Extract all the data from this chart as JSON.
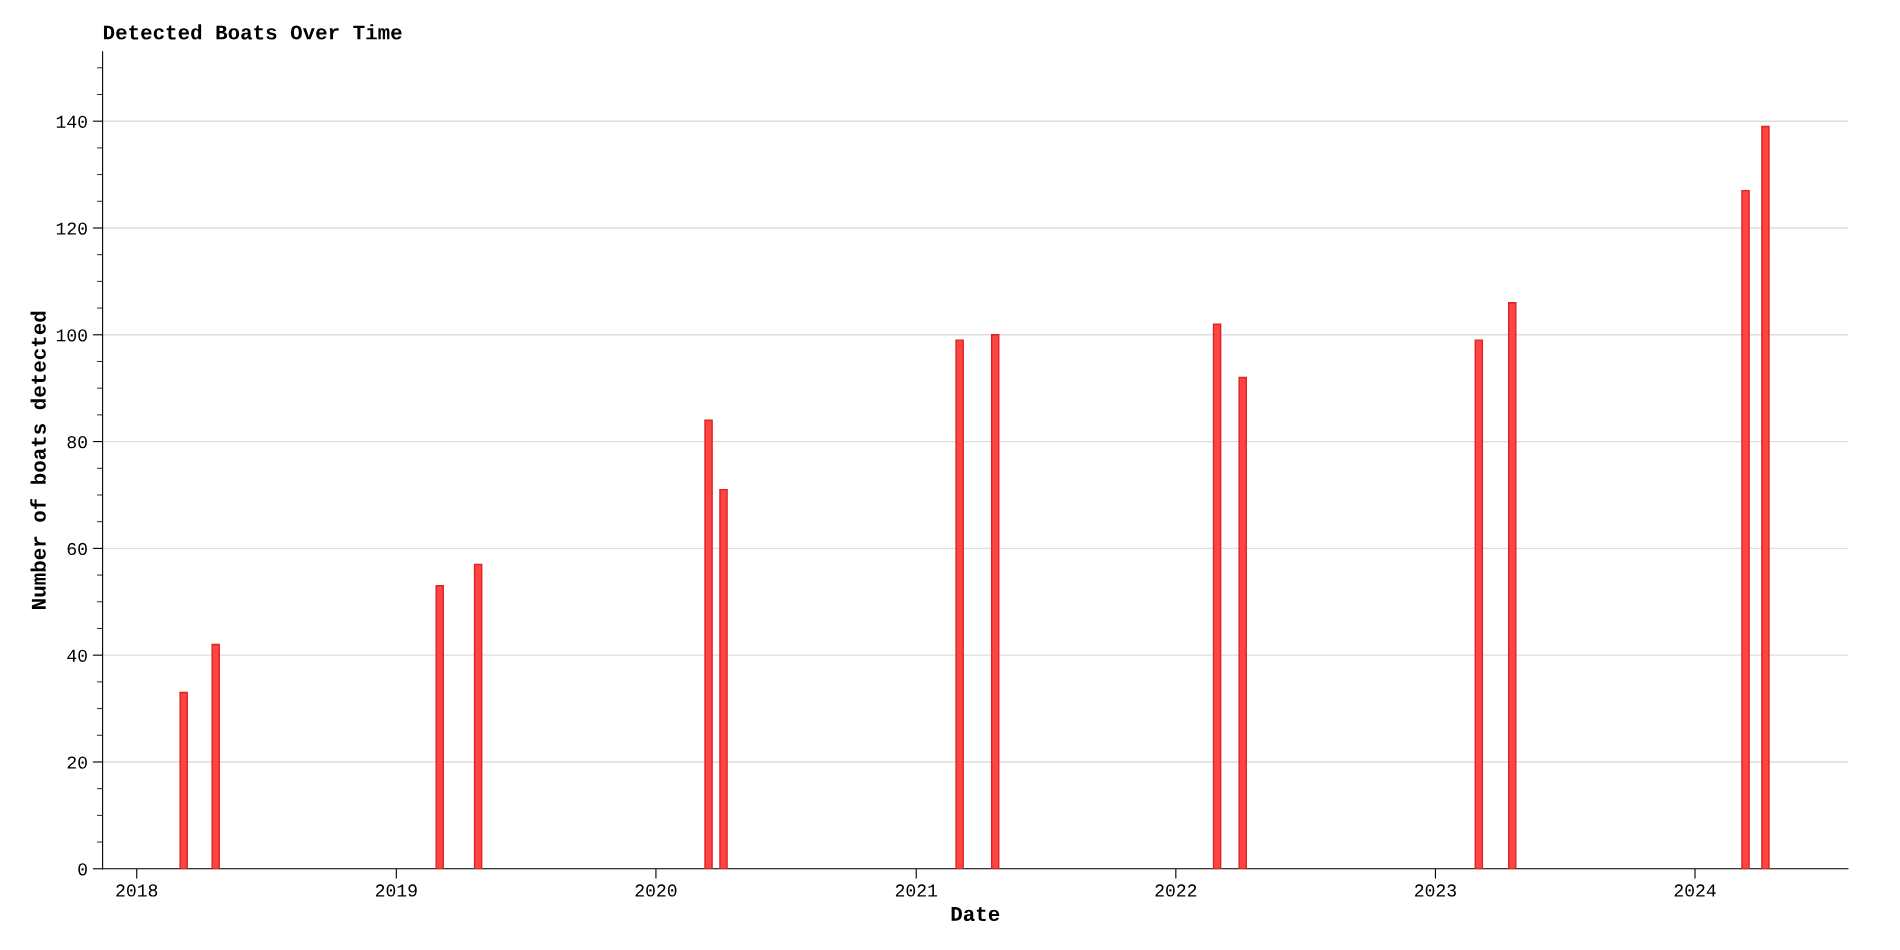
{
  "chart_data": {
    "type": "bar",
    "title": "Detected Boats Over Time",
    "xlabel": "Date",
    "ylabel": "Number of boats detected",
    "x": [
      "2018-03-08",
      "2018-04-22",
      "2019-03-03",
      "2019-04-26",
      "2020-03-15",
      "2020-04-05",
      "2021-03-03",
      "2021-04-22",
      "2022-02-28",
      "2022-04-05",
      "2023-03-03",
      "2023-04-19",
      "2024-03-12",
      "2024-04-09"
    ],
    "values": [
      33,
      42,
      53,
      57,
      84,
      71,
      99,
      100,
      102,
      92,
      99,
      106,
      127,
      139
    ],
    "color": "#ff4444",
    "xlim": [
      "2017-11-14",
      "2024-08-03"
    ],
    "xticks": [
      {
        "value": "2018",
        "label": "2018"
      },
      {
        "value": "2019",
        "label": "2019"
      },
      {
        "value": "2020",
        "label": "2020"
      },
      {
        "value": "2021",
        "label": "2021"
      },
      {
        "value": "2022",
        "label": "2022"
      },
      {
        "value": "2023",
        "label": "2023"
      },
      {
        "value": "2024",
        "label": "2024"
      }
    ],
    "ylim": [
      0,
      153
    ],
    "yticks": [
      0,
      20,
      40,
      60,
      80,
      100,
      120,
      140
    ],
    "grid": "y",
    "legend": false
  }
}
